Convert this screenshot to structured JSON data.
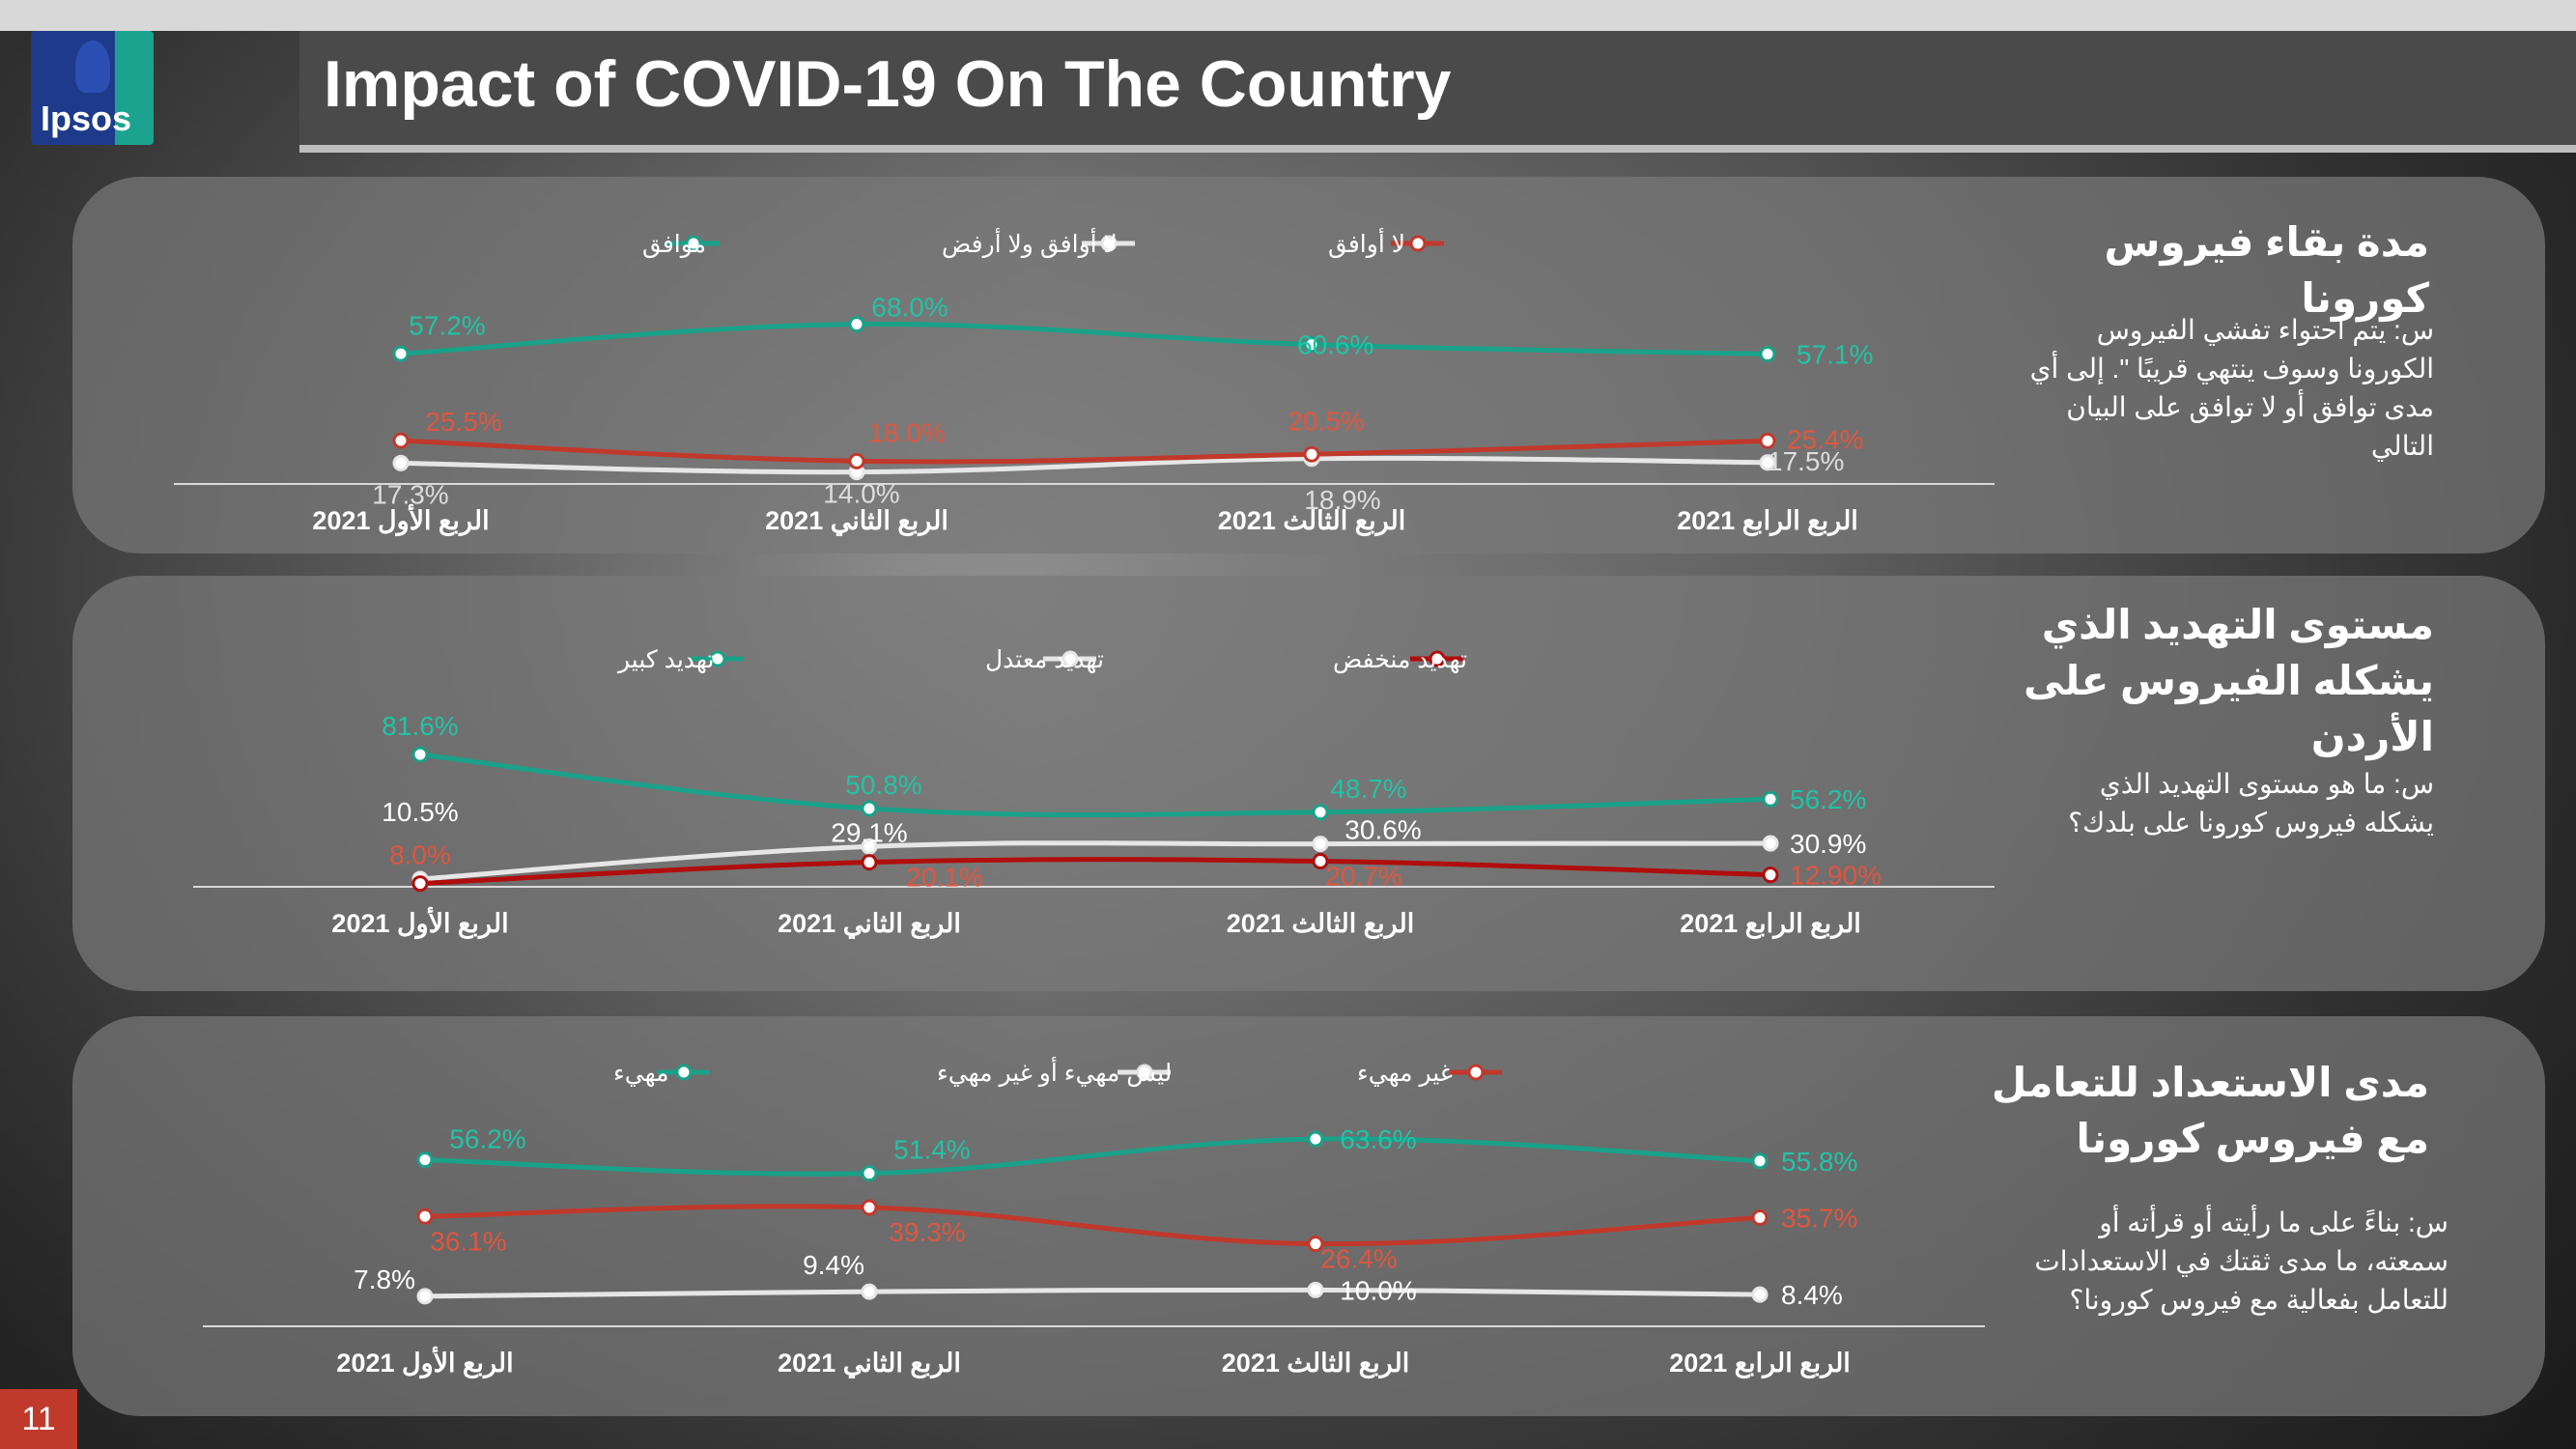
{
  "header": {
    "title": "Impact of COVID-19 On The Country",
    "logo_text": "Ipsos"
  },
  "page_number": "11",
  "colors": {
    "teal": "#1aa189",
    "white": "#e6e6e6",
    "red": "#c0392b",
    "dark_red": "#b00d0d"
  },
  "chart_data": [
    {
      "type": "line",
      "title": "مدة بقاء فيروس كورونا",
      "question": "س: يتم احتواء تفشي الفيروس الكورونا وسوف ينتهي قريبًا \". إلى أي مدى توافق أو لا توافق على البيان التالي",
      "categories": [
        "الربع الأول 2021",
        "الربع الثاني 2021",
        "الربع الثالث 2021",
        "الربع الرابع 2021"
      ],
      "series": [
        {
          "name": "موافق",
          "color": "#1aa189",
          "label_color": "#22c3a6",
          "values": [
            57.2,
            68.0,
            60.6,
            57.1
          ],
          "labels": [
            "57.2%",
            "68.0%",
            "60.6%",
            "57.1%"
          ]
        },
        {
          "name": "لا أوافق ولا أرفض",
          "color": "#e6e6e6",
          "label_color": "#dddddd",
          "values": [
            17.3,
            14.0,
            18.9,
            17.5
          ],
          "labels": [
            "17.3%",
            "14.0%",
            "18.9%",
            "17.5%"
          ]
        },
        {
          "name": "لا أوافق",
          "color": "#c0392b",
          "label_color": "#e0563f",
          "values": [
            25.5,
            18.0,
            20.5,
            25.4
          ],
          "labels": [
            "25.5%",
            "18.0%",
            "20.5%",
            "25.4%"
          ]
        }
      ]
    },
    {
      "type": "line",
      "title": "مستوى التهديد الذي يشكله الفيروس على الأردن",
      "question": "س: ما هو مستوى التهديد الذي يشكله فيروس كورونا على بلدك؟",
      "categories": [
        "الربع الأول 2021",
        "الربع الثاني 2021",
        "الربع الثالث 2021",
        "الربع الرابع 2021"
      ],
      "series": [
        {
          "name": "تهديد كبير",
          "color": "#1aa189",
          "label_color": "#22c3a6",
          "values": [
            81.6,
            50.8,
            48.7,
            56.2
          ],
          "labels": [
            "81.6%",
            "50.8%",
            "48.7%",
            "56.2%"
          ]
        },
        {
          "name": "تهديد معتدل",
          "color": "#e6e6e6",
          "label_color": "#ffffff",
          "values": [
            10.5,
            29.1,
            30.6,
            30.9
          ],
          "labels": [
            "10.5%",
            "29.1%",
            "30.6%",
            "30.9%"
          ]
        },
        {
          "name": "تهديد منخفض",
          "color": "#b00d0d",
          "label_color": "#e0563f",
          "values": [
            8.0,
            20.1,
            20.7,
            12.9
          ],
          "labels": [
            "8.0%",
            "20.1%",
            "20.7%",
            "12.90%"
          ]
        }
      ]
    },
    {
      "type": "line",
      "title": "مدى الاستعداد للتعامل مع فيروس كورونا",
      "question": "س: بناءً على ما رأيته أو قرأته أو سمعته، ما مدى ثقتك في الاستعدادات للتعامل بفعالية مع فيروس كورونا؟",
      "categories": [
        "الربع الأول 2021",
        "الربع الثاني 2021",
        "الربع الثالث 2021",
        "الربع الرابع 2021"
      ],
      "series": [
        {
          "name": "مهيء",
          "color": "#1aa189",
          "label_color": "#22c3a6",
          "values": [
            56.2,
            51.4,
            63.6,
            55.8
          ],
          "labels": [
            "56.2%",
            "51.4%",
            "63.6%",
            "55.8%"
          ]
        },
        {
          "name": "ليس مهيء أو غير مهيء",
          "color": "#e6e6e6",
          "label_color": "#ffffff",
          "values": [
            7.8,
            9.4,
            10.0,
            8.4
          ],
          "labels": [
            "7.8%",
            "9.4%",
            "10.0%",
            "8.4%"
          ]
        },
        {
          "name": "غير مهيء",
          "color": "#c0392b",
          "label_color": "#e0563f",
          "values": [
            36.1,
            39.3,
            26.4,
            35.7
          ],
          "labels": [
            "36.1%",
            "39.3%",
            "26.4%",
            "35.7%"
          ]
        }
      ]
    }
  ]
}
